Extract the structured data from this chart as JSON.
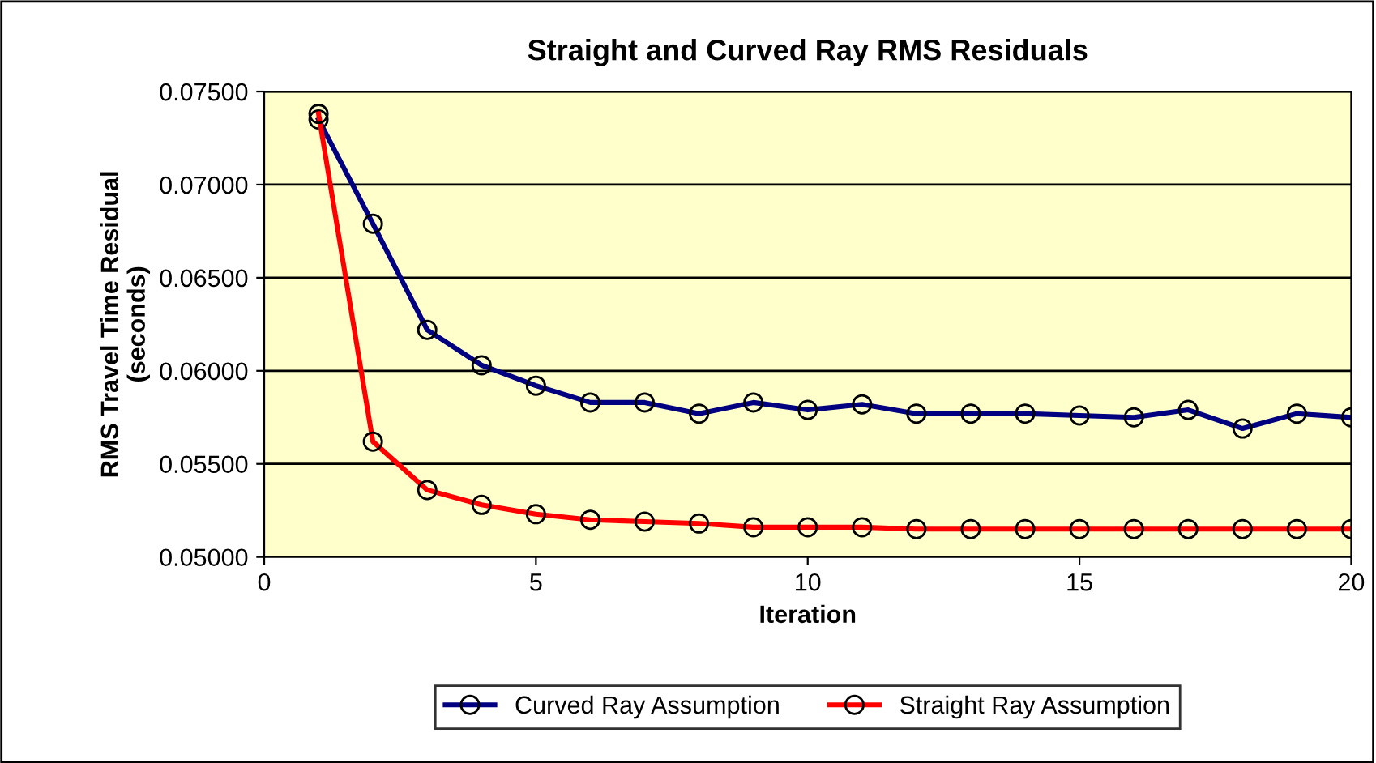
{
  "chart_data": {
    "type": "line",
    "title": "Straight and Curved Ray RMS Residuals",
    "xlabel": "Iteration",
    "ylabel": "RMS Travel Time Residual\n(seconds)",
    "x": [
      1,
      2,
      3,
      4,
      5,
      6,
      7,
      8,
      9,
      10,
      11,
      12,
      13,
      14,
      15,
      16,
      17,
      18,
      19,
      20
    ],
    "series": [
      {
        "name": "Curved Ray Assumption",
        "color": "#000080",
        "values": [
          0.0735,
          0.0679,
          0.0622,
          0.0603,
          0.0592,
          0.0583,
          0.0583,
          0.0577,
          0.0583,
          0.0579,
          0.0582,
          0.0577,
          0.0577,
          0.0577,
          0.0576,
          0.0575,
          0.0579,
          0.0569,
          0.0577,
          0.0575
        ]
      },
      {
        "name": "Straight Ray Assumption",
        "color": "#ff0000",
        "values": [
          0.0738,
          0.0562,
          0.0536,
          0.0528,
          0.0523,
          0.052,
          0.0519,
          0.0518,
          0.0516,
          0.0516,
          0.0516,
          0.0515,
          0.0515,
          0.0515,
          0.0515,
          0.0515,
          0.0515,
          0.0515,
          0.0515,
          0.0515
        ]
      }
    ],
    "xlim": [
      0,
      20
    ],
    "xticks": [
      0,
      5,
      10,
      15,
      20
    ],
    "ylim": [
      0.05,
      0.075
    ],
    "yticks": [
      {
        "value": 0.05,
        "label": "0.05000"
      },
      {
        "value": 0.055,
        "label": "0.05500"
      },
      {
        "value": 0.06,
        "label": "0.06000"
      },
      {
        "value": 0.065,
        "label": "0.06500"
      },
      {
        "value": 0.07,
        "label": "0.07000"
      },
      {
        "value": 0.075,
        "label": "0.07500"
      }
    ],
    "grid": "y",
    "legend": "bottom",
    "marker": "circle",
    "line_style": "solid"
  }
}
